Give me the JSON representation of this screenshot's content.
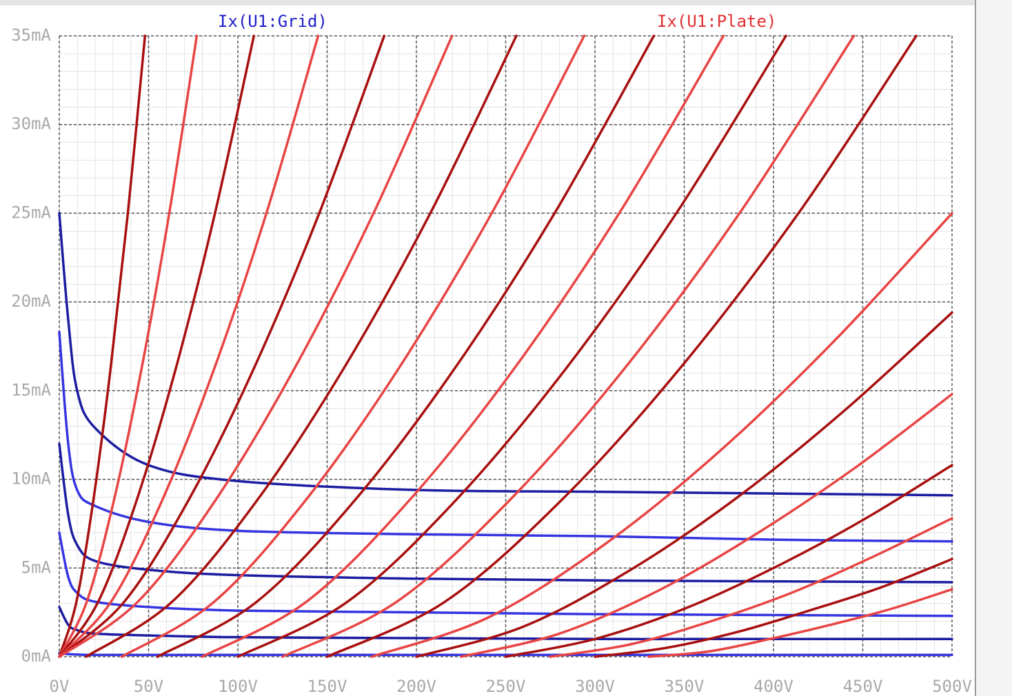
{
  "chart_data": {
    "type": "line",
    "legend": [
      {
        "name": "Ix(U1:Grid)",
        "color": "#2020c8"
      },
      {
        "name": "Ix(U1:Plate)",
        "color": "#e03030"
      }
    ],
    "xlim": [
      0,
      500
    ],
    "ylim": [
      0,
      35
    ],
    "xticks": [
      {
        "value": 0,
        "label": "0V"
      },
      {
        "value": 50,
        "label": "50V"
      },
      {
        "value": 100,
        "label": "100V"
      },
      {
        "value": 150,
        "label": "150V"
      },
      {
        "value": 200,
        "label": "200V"
      },
      {
        "value": 250,
        "label": "250V"
      },
      {
        "value": 300,
        "label": "300V"
      },
      {
        "value": 350,
        "label": "350V"
      },
      {
        "value": 400,
        "label": "400V"
      },
      {
        "value": 450,
        "label": "450V"
      },
      {
        "value": 500,
        "label": "500V"
      }
    ],
    "yticks": [
      {
        "value": 0,
        "label": "0mA"
      },
      {
        "value": 5,
        "label": "5mA"
      },
      {
        "value": 10,
        "label": "10mA"
      },
      {
        "value": 15,
        "label": "15mA"
      },
      {
        "value": 20,
        "label": "20mA"
      },
      {
        "value": 25,
        "label": "25mA"
      },
      {
        "value": 30,
        "label": "30mA"
      },
      {
        "value": 35,
        "label": "35mA"
      }
    ],
    "grid": true,
    "series": [
      {
        "color": "#1c1ca0",
        "x": [
          0,
          5,
          10,
          20,
          50,
          100,
          200,
          300,
          400,
          500
        ],
        "values": [
          25,
          19,
          15,
          12.9,
          10.8,
          9.9,
          9.4,
          9.3,
          9.2,
          9.1
        ]
      },
      {
        "color": "#3434e0",
        "x": [
          0,
          5,
          10,
          20,
          50,
          100,
          200,
          300,
          400,
          500
        ],
        "values": [
          18.3,
          12,
          9.4,
          8.5,
          7.6,
          7.1,
          6.9,
          6.8,
          6.6,
          6.5
        ]
      },
      {
        "color": "#1c1ca0",
        "x": [
          0,
          5,
          10,
          20,
          50,
          100,
          200,
          300,
          400,
          500
        ],
        "values": [
          12,
          8,
          6.3,
          5.4,
          4.9,
          4.6,
          4.4,
          4.3,
          4.25,
          4.2
        ]
      },
      {
        "color": "#3434e0",
        "x": [
          0,
          5,
          10,
          20,
          50,
          100,
          200,
          300,
          400,
          500
        ],
        "values": [
          7,
          4.5,
          3.6,
          3.1,
          2.8,
          2.6,
          2.5,
          2.4,
          2.35,
          2.3
        ]
      },
      {
        "color": "#1c1ca0",
        "x": [
          0,
          5,
          10,
          20,
          50,
          100,
          200,
          300,
          400,
          500
        ],
        "values": [
          2.8,
          1.8,
          1.5,
          1.3,
          1.2,
          1.1,
          1.05,
          1,
          1,
          1
        ]
      },
      {
        "color": "#3434e0",
        "x": [
          0,
          5,
          10,
          20,
          50,
          100,
          200,
          300,
          400,
          500
        ],
        "values": [
          0.2,
          0.15,
          0.12,
          0.1,
          0.1,
          0.1,
          0.1,
          0.1,
          0.1,
          0.1
        ]
      },
      {
        "color": "#a80f0f",
        "x": [
          0,
          9.6,
          19.2,
          28.8,
          38.4,
          48
        ],
        "values": [
          0,
          3.1,
          8.9,
          16.3,
          25,
          35
        ]
      },
      {
        "color": "#e84444",
        "x": [
          0,
          15.4,
          30.8,
          46.2,
          61.6,
          77
        ],
        "values": [
          0,
          3.1,
          8.9,
          16.3,
          25,
          35
        ]
      },
      {
        "color": "#a80f0f",
        "x": [
          0,
          21.8,
          43.6,
          65.4,
          87.2,
          109
        ],
        "values": [
          0,
          3.1,
          8.9,
          16.3,
          25,
          35
        ]
      },
      {
        "color": "#e84444",
        "x": [
          0,
          29,
          58,
          87,
          116,
          145
        ],
        "values": [
          0,
          3.1,
          8.9,
          16.3,
          25,
          35
        ]
      },
      {
        "color": "#a80f0f",
        "x": [
          0,
          36.4,
          72.8,
          109.2,
          145.6,
          182
        ],
        "values": [
          0,
          3.1,
          8.9,
          16.3,
          25,
          35
        ]
      },
      {
        "color": "#e84444",
        "x": [
          0,
          44,
          88,
          132,
          176,
          220
        ],
        "values": [
          0,
          3.1,
          8.9,
          16.3,
          25,
          35
        ]
      },
      {
        "color": "#a80f0f",
        "x": [
          15,
          63.2,
          111.4,
          159.6,
          207.8,
          256
        ],
        "values": [
          0,
          3.1,
          8.9,
          16.3,
          25,
          35
        ]
      },
      {
        "color": "#e84444",
        "x": [
          35,
          86.8,
          138.6,
          190.4,
          242.2,
          294
        ],
        "values": [
          0,
          3.1,
          8.9,
          16.3,
          25,
          35
        ]
      },
      {
        "color": "#a80f0f",
        "x": [
          55,
          110.6,
          166.2,
          221.8,
          277.4,
          333
        ],
        "values": [
          0,
          3.1,
          8.9,
          16.3,
          25,
          35
        ]
      },
      {
        "color": "#e84444",
        "x": [
          80,
          138.4,
          196.8,
          255.2,
          313.6,
          372
        ],
        "values": [
          0,
          3.1,
          8.9,
          16.3,
          25,
          35
        ]
      },
      {
        "color": "#a80f0f",
        "x": [
          100,
          161.4,
          222.8,
          284.2,
          345.6,
          407
        ],
        "values": [
          0,
          3.1,
          8.9,
          16.3,
          25,
          35
        ]
      },
      {
        "color": "#e84444",
        "x": [
          125,
          189,
          253,
          317,
          381,
          445
        ],
        "values": [
          0,
          3.1,
          8.9,
          16.3,
          25,
          35
        ]
      },
      {
        "color": "#a80f0f",
        "x": [
          150,
          216,
          282,
          348,
          414,
          480
        ],
        "values": [
          0,
          3.1,
          8.9,
          16.3,
          25,
          35
        ]
      },
      {
        "color": "#e84444",
        "x": [
          175,
          240,
          305,
          370,
          435,
          500
        ],
        "values": [
          0,
          2.2,
          6.3,
          11.6,
          17.9,
          25
        ]
      },
      {
        "color": "#a80f0f",
        "x": [
          200,
          260,
          320,
          380,
          440,
          500
        ],
        "values": [
          0,
          1.7,
          4.9,
          9,
          13.9,
          19.4
        ]
      },
      {
        "color": "#e84444",
        "x": [
          225,
          280,
          335,
          390,
          445,
          500
        ],
        "values": [
          0,
          1.3,
          3.7,
          6.9,
          10.6,
          14.8
        ]
      },
      {
        "color": "#a80f0f",
        "x": [
          250,
          300,
          350,
          400,
          450,
          500
        ],
        "values": [
          0,
          1,
          2.7,
          5,
          7.7,
          10.8
        ]
      },
      {
        "color": "#e84444",
        "x": [
          275,
          320,
          365,
          410,
          455,
          500
        ],
        "values": [
          0,
          0.7,
          2,
          3.6,
          5.6,
          7.8
        ]
      },
      {
        "color": "#a80f0f",
        "x": [
          300,
          340,
          380,
          420,
          460,
          500
        ],
        "values": [
          0,
          0.5,
          1.4,
          2.6,
          3.9,
          5.5
        ]
      },
      {
        "color": "#e84444",
        "x": [
          330,
          364,
          398,
          432,
          466,
          500
        ],
        "values": [
          0,
          0.3,
          1,
          1.8,
          2.7,
          3.8
        ]
      }
    ]
  }
}
